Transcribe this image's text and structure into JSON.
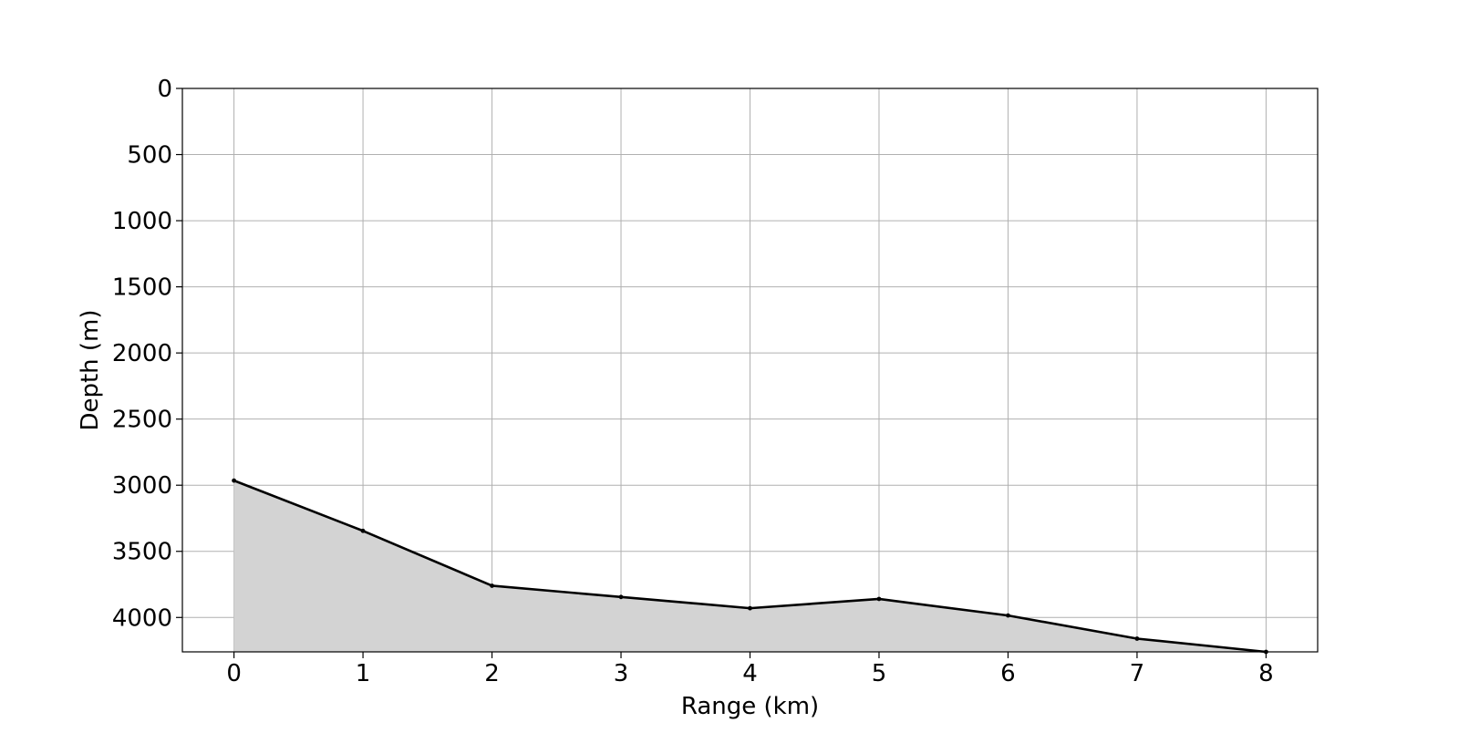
{
  "chart_data": {
    "type": "area",
    "title": "",
    "xlabel": "Range (km)",
    "ylabel": "Depth (m)",
    "x": [
      0,
      1,
      2,
      3,
      4,
      5,
      6,
      7,
      8
    ],
    "series": [
      {
        "values": [
          2965,
          3345,
          3760,
          3845,
          3930,
          3860,
          3985,
          4160,
          4260
        ]
      }
    ],
    "xlim": [
      -0.4,
      8.4
    ],
    "ylim": [
      4260,
      0
    ],
    "y_inverted": true,
    "xticks": [
      "0",
      "1",
      "2",
      "3",
      "4",
      "5",
      "6",
      "7",
      "8"
    ],
    "yticks": [
      "0",
      "500",
      "1000",
      "1500",
      "2000",
      "2500",
      "3000",
      "3500",
      "4000"
    ],
    "grid": true,
    "line_color": "#000000",
    "fill_color": "#d3d3d3",
    "grid_color": "#b0b0b0"
  }
}
